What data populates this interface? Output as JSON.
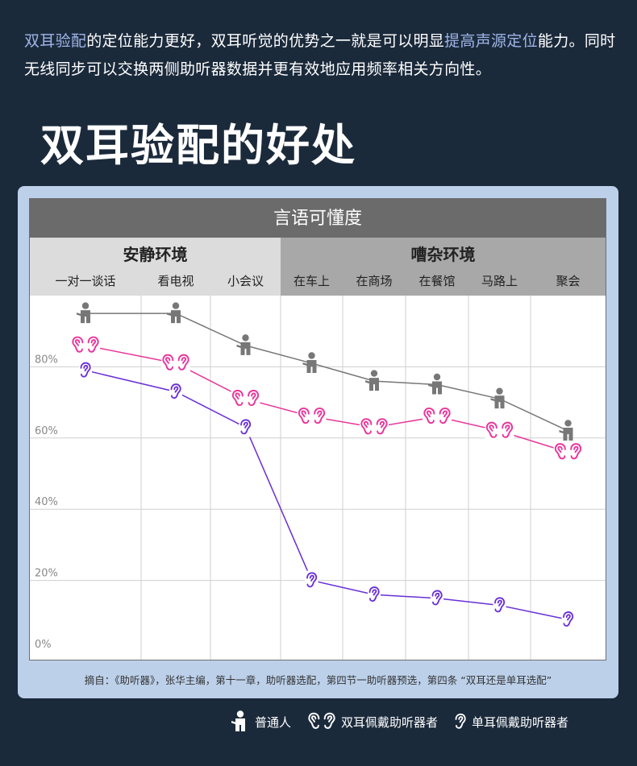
{
  "intro": {
    "part1_hl": "双耳验配",
    "part2": "的定位能力更好，双耳听觉的优势之一就是可以明显",
    "part3_hl": "提高声源定位",
    "part4": "能力。同时无线同步可以交换两侧助听器数据并更有效地应用频率相关方向性。"
  },
  "headline": "双耳验配的好处",
  "source_note": "摘自：《助听器》，张华主编，第十一章，助听器选配，第四节一助听器预选，第四条 “双耳还是单耳选配”",
  "legend": {
    "normal": "普通人",
    "binaural": "双耳佩戴助听器者",
    "monaural": "单耳佩戴助听器者"
  },
  "colors": {
    "background": "#1b2a3b",
    "panel": "#bcd0ea",
    "normal": "#777777",
    "binaural": "#e8379c",
    "monaural": "#6a2fd6",
    "title_bar": "#6b6b6b",
    "quiet_header": "#dcdcdc",
    "noisy_header": "#a8a8a8"
  },
  "chart_data": {
    "type": "line",
    "title": "言语可懂度",
    "groups": [
      {
        "name": "安静环境",
        "categories": [
          "一对一谈话",
          "看电视",
          "小会议"
        ]
      },
      {
        "name": "嘈杂环境",
        "categories": [
          "在车上",
          "在商场",
          "在餐馆",
          "马路上",
          "聚会"
        ]
      }
    ],
    "categories": [
      "一对一谈话",
      "看电视",
      "小会议",
      "在车上",
      "在商场",
      "在餐馆",
      "马路上",
      "聚会"
    ],
    "ylim": [
      0,
      100
    ],
    "yticks": [
      0,
      20,
      40,
      60,
      80
    ],
    "ytick_labels": [
      "0%",
      "20%",
      "40%",
      "60%",
      "80%"
    ],
    "grid": true,
    "legend_position": "bottom",
    "series": [
      {
        "name": "普通人",
        "marker": "person-icon",
        "values": [
          95,
          95,
          86,
          81,
          76,
          75,
          71,
          62
        ]
      },
      {
        "name": "双耳佩戴助听器者",
        "marker": "two-ears-icon",
        "values": [
          86,
          81,
          71,
          66,
          63,
          66,
          62,
          56
        ]
      },
      {
        "name": "单耳佩戴助听器者",
        "marker": "single-ear-icon",
        "values": [
          79,
          73,
          63,
          20,
          16,
          15,
          13,
          9
        ]
      }
    ]
  }
}
